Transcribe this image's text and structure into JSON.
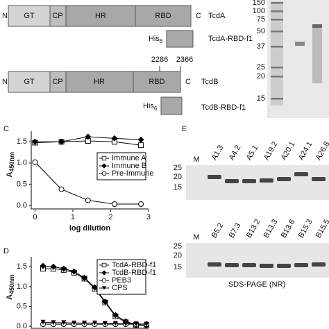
{
  "schematic": {
    "n": "N",
    "c": "C",
    "gt": "GT",
    "cp": "CP",
    "hr": "HR",
    "rbd": "RBD",
    "tcda": "TcdA",
    "tcdb": "TcdB",
    "his": "His",
    "his_sub": "6",
    "fa": "TcdA-RBD-f1",
    "fb": "TcdB-RBD-f1",
    "pos1": "2286",
    "pos2": "2366"
  },
  "gel_top": {
    "markers": [
      "150",
      "100",
      "75",
      "50",
      "37",
      "25",
      "20",
      "15"
    ]
  },
  "panel_letters": [
    "C",
    "D",
    "E"
  ],
  "chart_data": [
    {
      "type": "line",
      "ylabel": "A",
      "ylabel_subscript": "450nm",
      "xlabel": "log dilution",
      "x": [
        0,
        0.7,
        1.4,
        2.1,
        2.8
      ],
      "xlim": [
        -0.1,
        3.0
      ],
      "xticks": [
        0,
        1,
        2,
        3
      ],
      "ylim": [
        -0.1,
        1.75
      ],
      "yticks": [
        {
          "value": 0,
          "label": "0.0"
        },
        {
          "value": 0.5,
          "label": "0.5"
        },
        {
          "value": 1,
          "label": "1.0"
        },
        {
          "value": 1.5,
          "label": "1.5"
        }
      ],
      "legend": "center right",
      "series": [
        {
          "name": "Immune  A",
          "color": "#000",
          "marker": "square-open",
          "values": [
            1.48,
            1.5,
            1.52,
            1.5,
            1.42
          ]
        },
        {
          "name": "Immune  B",
          "color": "#000",
          "marker": "diamond-filled",
          "values": [
            1.5,
            1.5,
            1.62,
            1.58,
            1.55
          ]
        },
        {
          "name": "Pre-Immune",
          "color": "#000",
          "marker": "circle-open",
          "values": [
            1.02,
            0.38,
            0.12,
            0.03,
            0.03
          ]
        }
      ]
    },
    {
      "type": "line",
      "ylabel": "A",
      "ylabel_subscript": "450nm",
      "categories": [
        null,
        null,
        null,
        null,
        null,
        null,
        null,
        null,
        null,
        null,
        null
      ],
      "ylim": [
        -0.07,
        1.75
      ],
      "yticks": [
        {
          "value": 0,
          "label": "0.0"
        },
        {
          "value": 0.5,
          "label": "0.5"
        },
        {
          "value": 1,
          "label": "1.0"
        },
        {
          "value": 1.5,
          "label": "1.5"
        }
      ],
      "legend": "upper right",
      "series": [
        {
          "name": "TcdA-RBD-f1",
          "color": "#000",
          "marker": "square-open",
          "values": [
            1.45,
            1.45,
            1.42,
            1.35,
            1.2,
            0.95,
            0.6,
            0.25,
            0.1,
            0.03,
            0.02
          ]
        },
        {
          "name": "TcdB-RBD-f1",
          "color": "#000",
          "marker": "diamond-filled",
          "values": [
            1.52,
            1.5,
            1.45,
            1.38,
            1.22,
            0.98,
            0.62,
            0.28,
            0.12,
            0.04,
            0.02
          ]
        },
        {
          "name": "PEB3",
          "color": "#000",
          "marker": "circle-open",
          "values": [
            0.05,
            0.05,
            0.05,
            0.05,
            0.05,
            0.05,
            0.05,
            0.05,
            0.05,
            0.05,
            0.05
          ]
        },
        {
          "name": "CPS",
          "color": "#000",
          "marker": "triangle-filled",
          "values": [
            0.1,
            0.09,
            0.09,
            0.08,
            0.08,
            0.08,
            0.07,
            0.07,
            0.06,
            0.06,
            0.05
          ]
        }
      ]
    }
  ],
  "gel_e": {
    "top_lanes": [
      "M",
      "A1.3",
      "A4.2",
      "A5.1",
      "A19.2",
      "A20.1",
      "A24.1",
      "A26.8"
    ],
    "bottom_lanes": [
      "M",
      "B5.2",
      "B7.3",
      "B13.2",
      "B13.3",
      "B13.6",
      "B15.3",
      "B15.5"
    ],
    "markers": [
      "25",
      "20",
      "15"
    ],
    "caption": "SDS-PAGE (NR)"
  }
}
